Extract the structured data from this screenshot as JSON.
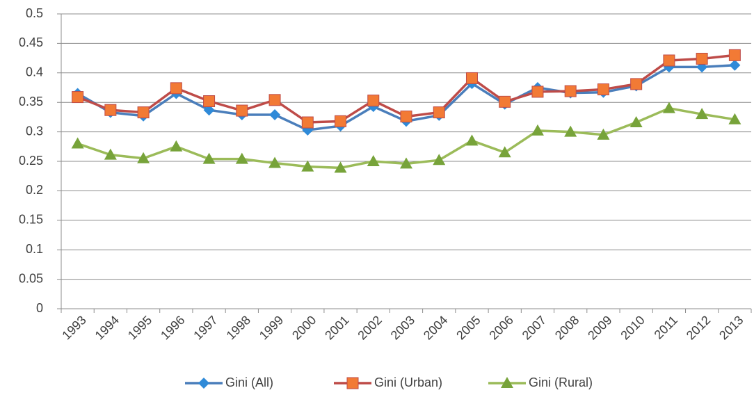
{
  "chart_data": {
    "type": "line",
    "categories": [
      "1993",
      "1994",
      "1995",
      "1996",
      "1997",
      "1998",
      "1999",
      "2000",
      "2001",
      "2002",
      "2003",
      "2004",
      "2005",
      "2006",
      "2007",
      "2008",
      "2009",
      "2010",
      "2011",
      "2012",
      "2013"
    ],
    "series": [
      {
        "name": "Gini (All)",
        "color": "#4a7ebb",
        "marker_color": "#2f8ad8",
        "marker": "diamond",
        "values": [
          0.365,
          0.333,
          0.327,
          0.365,
          0.337,
          0.329,
          0.329,
          0.303,
          0.31,
          0.343,
          0.318,
          0.328,
          0.382,
          0.347,
          0.375,
          0.366,
          0.367,
          0.378,
          0.41,
          0.41,
          0.413
        ]
      },
      {
        "name": "Gini (Urban)",
        "color": "#be4b48",
        "marker_color": "#f27a35",
        "marker": "square",
        "values": [
          0.359,
          0.337,
          0.333,
          0.374,
          0.352,
          0.336,
          0.354,
          0.316,
          0.318,
          0.353,
          0.326,
          0.333,
          0.391,
          0.351,
          0.368,
          0.369,
          0.372,
          0.381,
          0.421,
          0.424,
          0.43
        ]
      },
      {
        "name": "Gini (Rural)",
        "color": "#9bbb59",
        "marker_color": "#77a33a",
        "marker": "triangle",
        "values": [
          0.28,
          0.261,
          0.255,
          0.275,
          0.254,
          0.254,
          0.247,
          0.241,
          0.239,
          0.25,
          0.246,
          0.252,
          0.285,
          0.265,
          0.302,
          0.3,
          0.295,
          0.316,
          0.34,
          0.33,
          0.321
        ]
      }
    ],
    "ylim": [
      0,
      0.5
    ],
    "yticks": [
      0,
      0.05,
      0.1,
      0.15,
      0.2,
      0.25,
      0.3,
      0.35,
      0.4,
      0.45,
      0.5
    ],
    "grid": true,
    "legend": "bottom"
  }
}
